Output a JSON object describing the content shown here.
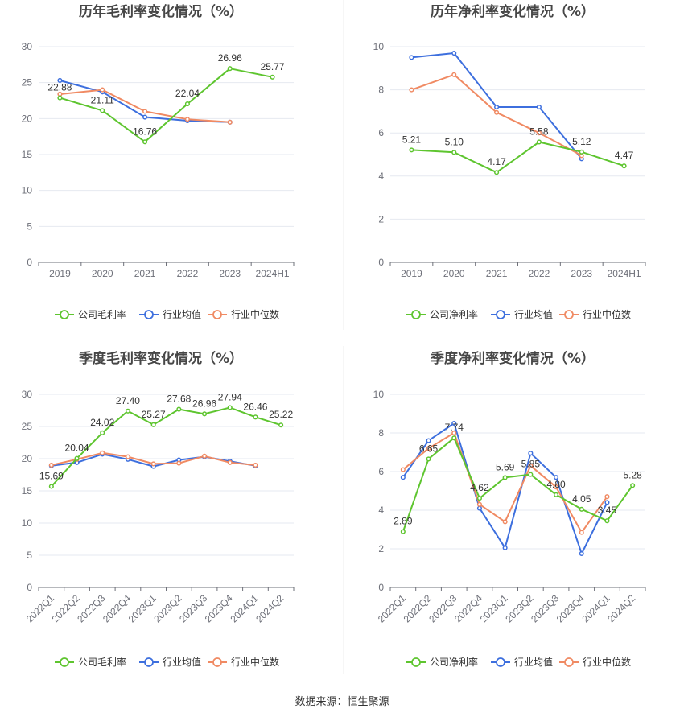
{
  "source_note": "数据来源：恒生聚源",
  "colors": {
    "company": "#5ec52f",
    "industry_avg": "#3d6fde",
    "industry_median": "#f08a63"
  },
  "chart_data": [
    {
      "type": "line",
      "title": "历年毛利率变化情况（%）",
      "categories": [
        "2019",
        "2020",
        "2021",
        "2022",
        "2023",
        "2024H1"
      ],
      "ylim": [
        0,
        30
      ],
      "yticks": [
        0,
        5,
        10,
        15,
        20,
        25,
        30
      ],
      "series": [
        {
          "name": "公司毛利率",
          "key": "company",
          "labeled": true,
          "values": [
            22.88,
            21.11,
            16.76,
            22.04,
            26.96,
            25.77
          ]
        },
        {
          "name": "行业均值",
          "key": "industry_avg",
          "values": [
            25.3,
            23.7,
            20.2,
            19.7,
            19.5,
            null
          ]
        },
        {
          "name": "行业中位数",
          "key": "industry_median",
          "values": [
            23.4,
            24.0,
            21.0,
            19.9,
            19.5,
            null
          ]
        }
      ]
    },
    {
      "type": "line",
      "title": "历年净利率变化情况（%）",
      "categories": [
        "2019",
        "2020",
        "2021",
        "2022",
        "2023",
        "2024H1"
      ],
      "ylim": [
        0,
        10
      ],
      "yticks": [
        0,
        2,
        4,
        6,
        8,
        10
      ],
      "series": [
        {
          "name": "公司净利率",
          "key": "company",
          "labeled": true,
          "values": [
            5.21,
            5.1,
            4.17,
            5.58,
            5.12,
            4.47
          ]
        },
        {
          "name": "行业均值",
          "key": "industry_avg",
          "values": [
            9.5,
            9.7,
            7.2,
            7.2,
            4.8,
            null
          ]
        },
        {
          "name": "行业中位数",
          "key": "industry_median",
          "values": [
            8.0,
            8.7,
            6.95,
            6.0,
            4.95,
            null
          ]
        }
      ]
    },
    {
      "type": "line",
      "title": "季度毛利率变化情况（%）",
      "categories": [
        "2022Q1",
        "2022Q2",
        "2022Q3",
        "2022Q4",
        "2023Q1",
        "2023Q2",
        "2023Q3",
        "2023Q4",
        "2024Q1",
        "2024Q2"
      ],
      "ylim": [
        0,
        30
      ],
      "yticks": [
        0,
        5,
        10,
        15,
        20,
        25,
        30
      ],
      "series": [
        {
          "name": "公司毛利率",
          "key": "company",
          "labeled": true,
          "values": [
            15.69,
            20.04,
            24.02,
            27.4,
            25.27,
            27.68,
            26.96,
            27.94,
            26.46,
            25.22
          ]
        },
        {
          "name": "行业均值",
          "key": "industry_avg",
          "values": [
            18.9,
            19.4,
            20.7,
            19.9,
            18.8,
            19.8,
            20.3,
            19.6,
            18.9,
            null
          ]
        },
        {
          "name": "行业中位数",
          "key": "industry_median",
          "values": [
            19.0,
            19.9,
            20.9,
            20.3,
            19.2,
            19.3,
            20.4,
            19.4,
            19.0,
            null
          ]
        }
      ]
    },
    {
      "type": "line",
      "title": "季度净利率变化情况（%）",
      "categories": [
        "2022Q1",
        "2022Q2",
        "2022Q3",
        "2022Q4",
        "2023Q1",
        "2023Q2",
        "2023Q3",
        "2023Q4",
        "2024Q1",
        "2024Q2"
      ],
      "ylim": [
        0,
        10
      ],
      "yticks": [
        0,
        2,
        4,
        6,
        8,
        10
      ],
      "series": [
        {
          "name": "公司净利率",
          "key": "company",
          "labeled": true,
          "values": [
            2.89,
            6.65,
            7.74,
            4.62,
            5.69,
            5.85,
            4.8,
            4.05,
            3.45,
            5.28
          ]
        },
        {
          "name": "行业均值",
          "key": "industry_avg",
          "values": [
            5.7,
            7.6,
            8.5,
            4.1,
            2.05,
            6.95,
            5.7,
            1.75,
            4.4,
            null
          ]
        },
        {
          "name": "行业中位数",
          "key": "industry_median",
          "values": [
            6.1,
            7.2,
            8.0,
            4.3,
            3.4,
            6.3,
            5.2,
            2.85,
            4.7,
            null
          ]
        }
      ]
    }
  ]
}
